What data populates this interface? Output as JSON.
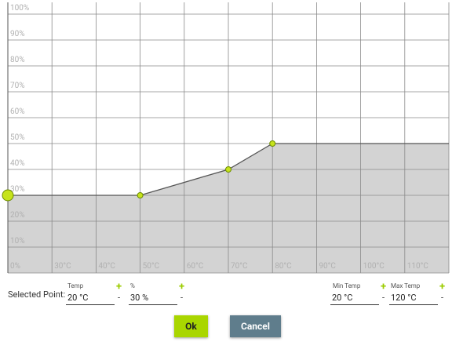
{
  "chart_data": {
    "type": "line",
    "x": [
      20,
      50,
      70,
      80,
      120
    ],
    "series": [
      {
        "values": [
          30,
          30,
          40,
          50,
          50
        ],
        "color": "#555555",
        "fill": "#d3d3d3",
        "marker_color": "#c6e31c"
      }
    ],
    "selected_index": 0,
    "xlim": [
      20,
      120
    ],
    "xticks": [
      {
        "value": 30,
        "label": "30°C"
      },
      {
        "value": 40,
        "label": "40°C"
      },
      {
        "value": 50,
        "label": "50°C"
      },
      {
        "value": 60,
        "label": "60°C"
      },
      {
        "value": 70,
        "label": "70°C"
      },
      {
        "value": 80,
        "label": "80°C"
      },
      {
        "value": 90,
        "label": "90°C"
      },
      {
        "value": 100,
        "label": "100°C"
      },
      {
        "value": 110,
        "label": "110°C"
      }
    ],
    "ylim": [
      0,
      100
    ],
    "yticks": [
      {
        "value": 0,
        "label": "0%"
      },
      {
        "value": 10,
        "label": "10%"
      },
      {
        "value": 20,
        "label": "20%"
      },
      {
        "value": 30,
        "label": "30%"
      },
      {
        "value": 40,
        "label": "40%"
      },
      {
        "value": 50,
        "label": "50%"
      },
      {
        "value": 60,
        "label": "60%"
      },
      {
        "value": 70,
        "label": "70%"
      },
      {
        "value": 80,
        "label": "80%"
      },
      {
        "value": 90,
        "label": "90%"
      },
      {
        "value": 100,
        "label": "100%"
      }
    ],
    "grid": true
  },
  "form": {
    "selected_label": "Selected Point:",
    "temp": {
      "label": "Temp",
      "value": "20 °C"
    },
    "percent": {
      "label": "%",
      "value": "30 %"
    },
    "min_temp": {
      "label": "Min Temp",
      "value": "20 °C"
    },
    "max_temp": {
      "label": "Max Temp",
      "value": "120 °C"
    },
    "plus": "+",
    "minus": "-",
    "ok": "Ok",
    "cancel": "Cancel"
  }
}
